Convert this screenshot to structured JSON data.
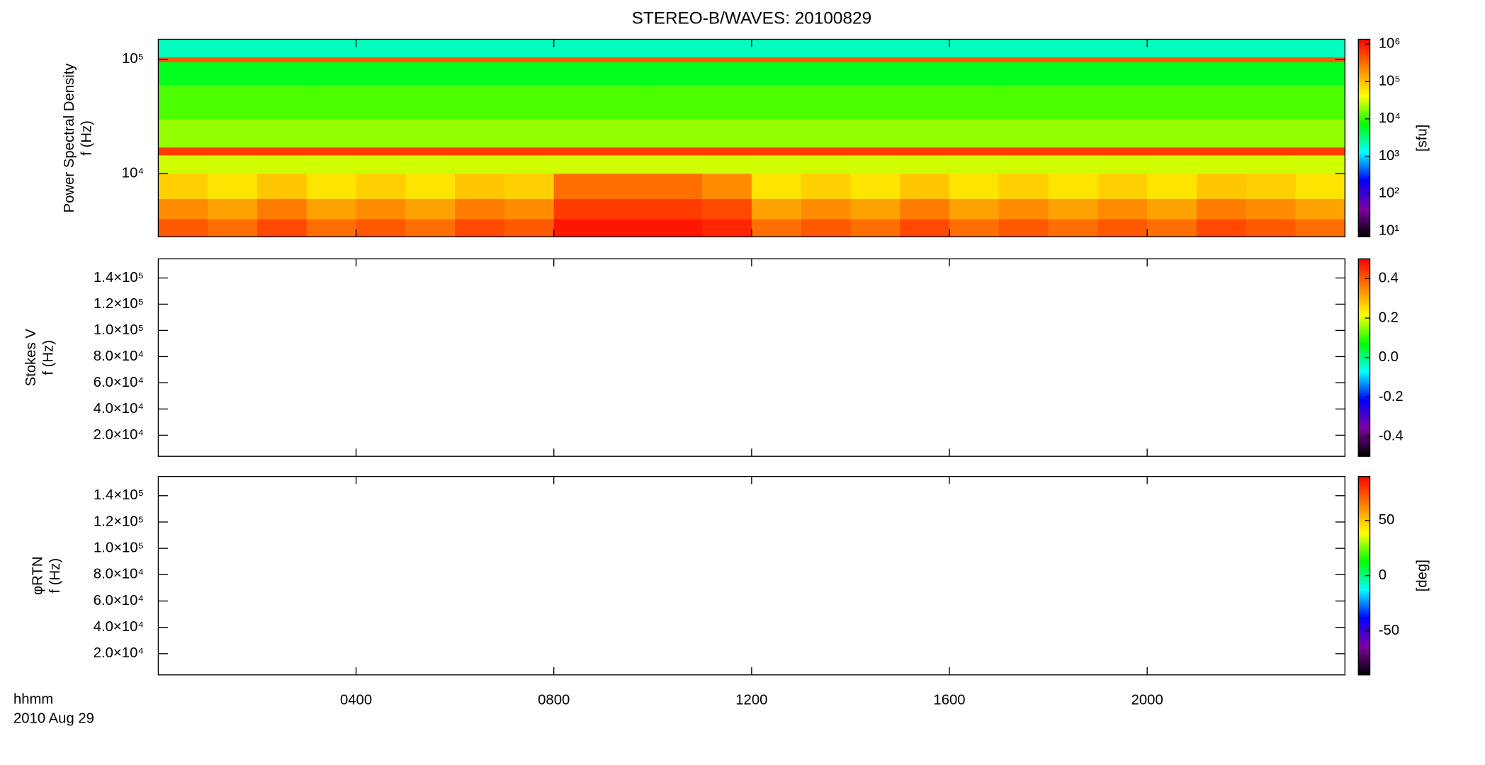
{
  "chart_data": [
    {
      "type": "heatmap",
      "title": "STEREO-B/WAVES: 20100829",
      "ylabel": [
        "Power Spectral Density",
        "f (Hz)"
      ],
      "ylog": true,
      "ylim": [
        2790,
        150000
      ],
      "yticks": [
        {
          "value": 10000,
          "label": "10⁴"
        },
        {
          "value": 100000,
          "label": "10⁵"
        }
      ],
      "xlim": [
        0,
        24
      ],
      "xticks": [
        4,
        8,
        12,
        16,
        20
      ],
      "x_bins": [
        0,
        1,
        2,
        3,
        4,
        5,
        6,
        7,
        8,
        9,
        10,
        11,
        12,
        13,
        14,
        15,
        16,
        17,
        18,
        19,
        20,
        21,
        22,
        23,
        24
      ],
      "y_bins": [
        2790,
        4000,
        6000,
        10000,
        14500,
        17000,
        30000,
        60000,
        95000,
        105000,
        150000
      ],
      "values": [
        [
          400000,
          300000,
          500000,
          300000,
          400000,
          300000,
          500000,
          400000,
          1000000,
          1000000,
          1000000,
          800000,
          300000,
          400000,
          300000,
          500000,
          300000,
          400000,
          300000,
          400000,
          300000,
          500000,
          400000,
          300000
        ],
        [
          200000,
          150000,
          250000,
          150000,
          200000,
          150000,
          250000,
          200000,
          600000,
          600000,
          600000,
          500000,
          150000,
          200000,
          150000,
          250000,
          150000,
          200000,
          150000,
          200000,
          150000,
          250000,
          200000,
          150000
        ],
        [
          80000,
          60000,
          90000,
          60000,
          80000,
          60000,
          90000,
          80000,
          300000,
          300000,
          300000,
          200000,
          60000,
          80000,
          60000,
          90000,
          60000,
          80000,
          60000,
          80000,
          60000,
          90000,
          80000,
          60000
        ],
        [
          30000,
          30000,
          30000,
          30000,
          30000,
          30000,
          30000,
          30000,
          30000,
          30000,
          30000,
          30000,
          30000,
          30000,
          30000,
          30000,
          30000,
          30000,
          30000,
          30000,
          30000,
          30000,
          30000,
          30000
        ],
        [
          600000,
          600000,
          600000,
          600000,
          600000,
          600000,
          600000,
          600000,
          600000,
          600000,
          600000,
          600000,
          600000,
          600000,
          600000,
          600000,
          600000,
          600000,
          600000,
          600000,
          600000,
          600000,
          600000,
          600000
        ],
        [
          20000,
          20000,
          20000,
          20000,
          20000,
          20000,
          20000,
          20000,
          20000,
          20000,
          20000,
          20000,
          20000,
          20000,
          20000,
          20000,
          20000,
          20000,
          20000,
          20000,
          20000,
          20000,
          20000,
          20000
        ],
        [
          12000,
          12000,
          12000,
          12000,
          12000,
          12000,
          12000,
          12000,
          12000,
          12000,
          12000,
          12000,
          12000,
          12000,
          12000,
          12000,
          12000,
          12000,
          12000,
          12000,
          12000,
          12000,
          12000,
          12000
        ],
        [
          6000,
          6000,
          6000,
          6000,
          6000,
          6000,
          6000,
          6000,
          6000,
          6000,
          6000,
          6000,
          6000,
          6000,
          6000,
          6000,
          6000,
          6000,
          6000,
          6000,
          6000,
          6000,
          6000,
          6000
        ],
        [
          400000,
          400000,
          400000,
          400000,
          400000,
          400000,
          400000,
          400000,
          400000,
          400000,
          400000,
          400000,
          400000,
          400000,
          400000,
          400000,
          400000,
          400000,
          400000,
          400000,
          400000,
          400000,
          400000,
          400000
        ],
        [
          2000,
          2000,
          2000,
          2000,
          2000,
          2000,
          2000,
          2000,
          2000,
          2000,
          2000,
          2000,
          2000,
          2000,
          2000,
          2000,
          2000,
          2000,
          2000,
          2000,
          2000,
          2000,
          2000,
          2000
        ]
      ],
      "colormap": [
        "#000000",
        "#7f00a0",
        "#0000ff",
        "#00ffff",
        "#00ff00",
        "#ffff00",
        "#ff8000",
        "#ff0000"
      ],
      "colorbar": {
        "log": true,
        "lim": [
          7,
          1340000
        ],
        "label": "[sfu]",
        "ticks": [
          {
            "value": 10,
            "label": "10¹"
          },
          {
            "value": 100,
            "label": "10²"
          },
          {
            "value": 1000,
            "label": "10³"
          },
          {
            "value": 10000,
            "label": "10⁴"
          },
          {
            "value": 100000,
            "label": "10⁵"
          },
          {
            "value": 1000000,
            "label": "10⁶"
          }
        ]
      }
    },
    {
      "type": "heatmap",
      "ylabel": [
        "Stokes V",
        "f (Hz)"
      ],
      "ylim": [
        3900,
        154600
      ],
      "yticks": [
        {
          "value": 20000,
          "label": "2.0×10⁴"
        },
        {
          "value": 40000,
          "label": "4.0×10⁴"
        },
        {
          "value": 60000,
          "label": "6.0×10⁴"
        },
        {
          "value": 80000,
          "label": "8.0×10⁴"
        },
        {
          "value": 100000,
          "label": "1.0×10⁵"
        },
        {
          "value": 120000,
          "label": "1.2×10⁵"
        },
        {
          "value": 140000,
          "label": "1.4×10⁵"
        }
      ],
      "xlim": [
        0,
        24
      ],
      "xticks": [
        4,
        8,
        12,
        16,
        20
      ],
      "colormap": [
        "#000000",
        "#7f00a0",
        "#0000ff",
        "#00ffff",
        "#00ff00",
        "#ffff00",
        "#ff8000",
        "#ff0000"
      ],
      "colorbar": {
        "log": false,
        "lim": [
          -0.5,
          0.5
        ],
        "ticks": [
          {
            "value": -0.4,
            "label": "-0.4"
          },
          {
            "value": -0.2,
            "label": "-0.2"
          },
          {
            "value": 0,
            "label": "0.0"
          },
          {
            "value": 0.2,
            "label": "0.2"
          },
          {
            "value": 0.4,
            "label": "0.4"
          }
        ]
      }
    },
    {
      "type": "heatmap",
      "ylabel": [
        "φRTN",
        "f (Hz)"
      ],
      "ylim": [
        3900,
        154600
      ],
      "yticks": [
        {
          "value": 20000,
          "label": "2.0×10⁴"
        },
        {
          "value": 40000,
          "label": "4.0×10⁴"
        },
        {
          "value": 60000,
          "label": "6.0×10⁴"
        },
        {
          "value": 80000,
          "label": "8.0×10⁴"
        },
        {
          "value": 100000,
          "label": "1.0×10⁵"
        },
        {
          "value": 120000,
          "label": "1.2×10⁵"
        },
        {
          "value": 140000,
          "label": "1.4×10⁵"
        }
      ],
      "xlim": [
        0,
        24
      ],
      "xticks": [
        {
          "value": 4,
          "label": "0400"
        },
        {
          "value": 8,
          "label": "0800"
        },
        {
          "value": 12,
          "label": "1200"
        },
        {
          "value": 16,
          "label": "1600"
        },
        {
          "value": 20,
          "label": "2000"
        }
      ],
      "xlabel": [
        "hhmm",
        "2010 Aug 29"
      ],
      "colormap": [
        "#000000",
        "#7f00a0",
        "#0000ff",
        "#00ffff",
        "#00ff00",
        "#ffff00",
        "#ff8000",
        "#ff0000"
      ],
      "colorbar": {
        "log": false,
        "lim": [
          -90,
          90
        ],
        "label": "[deg]",
        "ticks": [
          -50,
          0,
          50
        ]
      }
    }
  ]
}
